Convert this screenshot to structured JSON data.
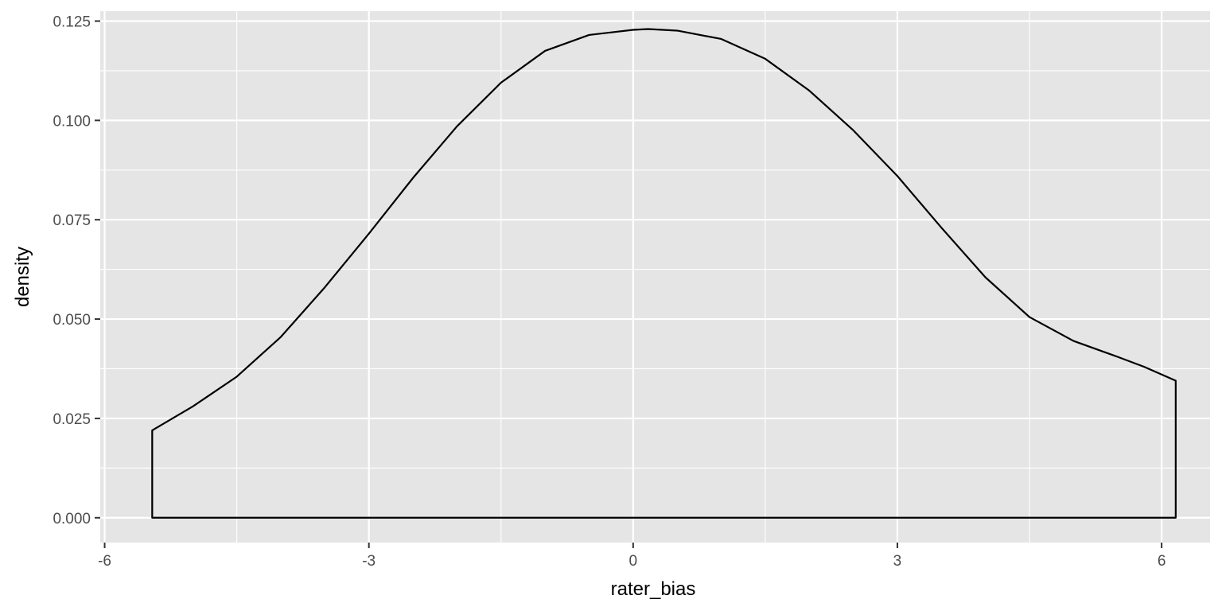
{
  "chart_data": {
    "type": "area",
    "xlabel": "rater_bias",
    "ylabel": "density",
    "xlim": [
      -6.05,
      6.55
    ],
    "ylim": [
      -0.00625,
      0.1275
    ],
    "x_ticks": [
      {
        "value": -6,
        "label": "-6"
      },
      {
        "value": -3,
        "label": "-3"
      },
      {
        "value": 0,
        "label": "0"
      },
      {
        "value": 3,
        "label": "3"
      },
      {
        "value": 6,
        "label": "6"
      }
    ],
    "x_minor_ticks": [
      -4.5,
      -1.5,
      1.5,
      4.5
    ],
    "y_ticks": [
      {
        "value": 0,
        "label": "0.000"
      },
      {
        "value": 0.025,
        "label": "0.025"
      },
      {
        "value": 0.05,
        "label": "0.050"
      },
      {
        "value": 0.075,
        "label": "0.075"
      },
      {
        "value": 0.1,
        "label": "0.100"
      },
      {
        "value": 0.125,
        "label": "0.125"
      }
    ],
    "y_minor_ticks": [
      0.0125,
      0.0375,
      0.0625,
      0.0875,
      0.1125
    ],
    "grid": true,
    "series": [
      {
        "x": [
          -5.46,
          -5.0,
          -4.5,
          -4.0,
          -3.5,
          -3.0,
          -2.5,
          -2.0,
          -1.5,
          -1.0,
          -0.5,
          0.0,
          0.17,
          0.5,
          1.0,
          1.5,
          2.0,
          2.5,
          3.0,
          3.5,
          4.0,
          4.5,
          5.0,
          5.5,
          5.8,
          6.16
        ],
        "y": [
          0.022,
          0.028,
          0.0355,
          0.0455,
          0.058,
          0.0715,
          0.0855,
          0.0985,
          0.1095,
          0.1175,
          0.1215,
          0.1228,
          0.123,
          0.1226,
          0.1205,
          0.1155,
          0.1075,
          0.0975,
          0.086,
          0.073,
          0.0605,
          0.0505,
          0.0445,
          0.0405,
          0.038,
          0.0345
        ]
      }
    ],
    "colors": {
      "panel_background": "#e5e5e5",
      "grid_line": "#ffffff",
      "curve": "#000000",
      "tick_text": "#4d4d4d",
      "tick_mark": "#333333"
    }
  }
}
